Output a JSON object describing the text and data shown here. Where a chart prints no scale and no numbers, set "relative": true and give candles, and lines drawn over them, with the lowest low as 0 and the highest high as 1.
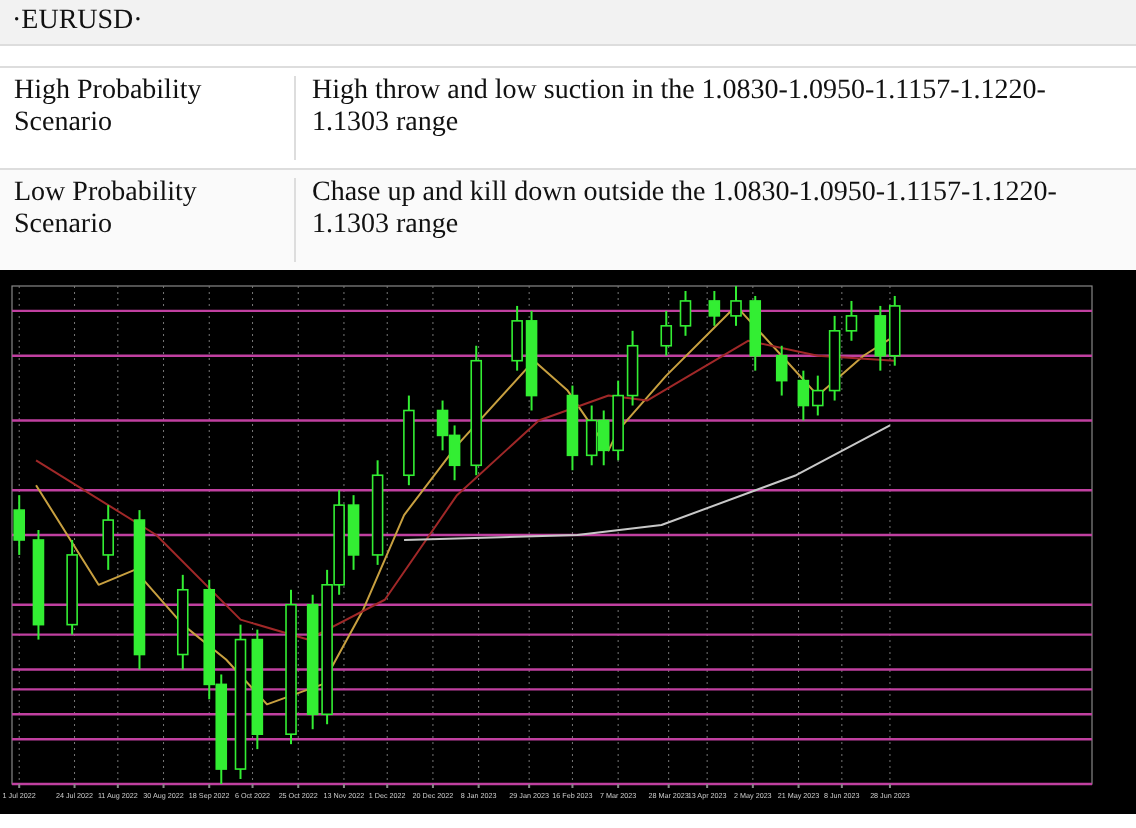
{
  "chart_data": [
    {
      "type": "other",
      "title": "·EURUSD·",
      "annotations": [
        "High Probability Scenario",
        "High throw and low suction in the 1.0830-1.0950-1.1157-1.1220-1.1303 range",
        "Low Probability Scenario",
        "Chase up and kill down outside the 1.0830-1.0950-1.1157-1.1220-1.1303 range"
      ]
    },
    {
      "type": "candlestick",
      "relative": true,
      "grid": "x",
      "xlim": [
        "2022-06-28",
        "2023-09-20"
      ],
      "xticks": [
        {
          "value": "2022-07-01",
          "label": "1 Jul 2022"
        },
        {
          "value": "2022-07-24",
          "label": "24 Jul 2022"
        },
        {
          "value": "2022-08-11",
          "label": "11 Aug 2022"
        },
        {
          "value": "2022-08-30",
          "label": "30 Aug 2022"
        },
        {
          "value": "2022-09-18",
          "label": "18 Sep 2022"
        },
        {
          "value": "2022-10-06",
          "label": "6 Oct 2022"
        },
        {
          "value": "2022-10-25",
          "label": "25 Oct 2022"
        },
        {
          "value": "2022-11-13",
          "label": "13 Nov 2022"
        },
        {
          "value": "2022-12-01",
          "label": "1 Dec 2022"
        },
        {
          "value": "2022-12-20",
          "label": "20 Dec 2022"
        },
        {
          "value": "2023-01-08",
          "label": "8 Jan 2023"
        },
        {
          "value": "2023-01-29",
          "label": "29 Jan 2023"
        },
        {
          "value": "2023-02-16",
          "label": "16 Feb 2023"
        },
        {
          "value": "2023-03-07",
          "label": "7 Mar 2023"
        },
        {
          "value": "2023-03-28",
          "label": "28 Mar 2023"
        },
        {
          "value": "2023-04-13",
          "label": "13 Apr 2023"
        },
        {
          "value": "2023-05-02",
          "label": "2 May 2023"
        },
        {
          "value": "2023-05-21",
          "label": "21 May 2023"
        },
        {
          "value": "2023-06-08",
          "label": "8 Jun 2023"
        },
        {
          "value": "2023-06-28",
          "label": "28 Jun 2023"
        }
      ],
      "x": [
        "2022-07-01",
        "2022-07-09",
        "2022-07-23",
        "2022-08-07",
        "2022-08-20",
        "2022-09-07",
        "2022-09-18",
        "2022-09-23",
        "2022-10-01",
        "2022-10-08",
        "2022-10-22",
        "2022-10-31",
        "2022-11-06",
        "2022-11-11",
        "2022-11-17",
        "2022-11-27",
        "2022-12-10",
        "2022-12-24",
        "2022-12-29",
        "2023-01-07",
        "2023-01-24",
        "2023-01-30",
        "2023-02-16",
        "2023-02-24",
        "2023-03-01",
        "2023-03-07",
        "2023-03-13",
        "2023-03-27",
        "2023-04-04",
        "2023-04-16",
        "2023-04-25",
        "2023-05-03",
        "2023-05-14",
        "2023-05-23",
        "2023-05-29",
        "2023-06-05",
        "2023-06-12",
        "2023-06-24",
        "2023-06-30"
      ],
      "ohlc": [
        [
          0.55,
          0.58,
          0.46,
          0.49
        ],
        [
          0.49,
          0.51,
          0.29,
          0.32
        ],
        [
          0.32,
          0.49,
          0.3,
          0.46
        ],
        [
          0.46,
          0.56,
          0.43,
          0.53
        ],
        [
          0.53,
          0.55,
          0.23,
          0.26
        ],
        [
          0.26,
          0.42,
          0.23,
          0.39
        ],
        [
          0.39,
          0.41,
          0.17,
          0.2
        ],
        [
          0.2,
          0.22,
          0,
          0.03
        ],
        [
          0.03,
          0.32,
          0.01,
          0.29
        ],
        [
          0.29,
          0.31,
          0.07,
          0.1
        ],
        [
          0.1,
          0.39,
          0.08,
          0.36
        ],
        [
          0.36,
          0.38,
          0.11,
          0.14
        ],
        [
          0.14,
          0.43,
          0.12,
          0.4
        ],
        [
          0.4,
          0.59,
          0.38,
          0.56
        ],
        [
          0.56,
          0.58,
          0.43,
          0.46
        ],
        [
          0.46,
          0.65,
          0.44,
          0.62
        ],
        [
          0.62,
          0.78,
          0.6,
          0.75
        ],
        [
          0.75,
          0.77,
          0.67,
          0.7
        ],
        [
          0.7,
          0.72,
          0.61,
          0.64
        ],
        [
          0.64,
          0.88,
          0.62,
          0.85
        ],
        [
          0.85,
          0.96,
          0.83,
          0.93
        ],
        [
          0.93,
          0.95,
          0.75,
          0.78
        ],
        [
          0.78,
          0.8,
          0.63,
          0.66
        ],
        [
          0.66,
          0.76,
          0.64,
          0.73
        ],
        [
          0.73,
          0.75,
          0.64,
          0.67
        ],
        [
          0.67,
          0.81,
          0.65,
          0.78
        ],
        [
          0.78,
          0.91,
          0.76,
          0.88
        ],
        [
          0.88,
          0.95,
          0.86,
          0.92
        ],
        [
          0.92,
          0.99,
          0.9,
          0.97
        ],
        [
          0.97,
          0.99,
          0.92,
          0.94
        ],
        [
          0.94,
          1,
          0.92,
          0.97
        ],
        [
          0.97,
          0.98,
          0.83,
          0.86
        ],
        [
          0.86,
          0.88,
          0.78,
          0.81
        ],
        [
          0.81,
          0.83,
          0.73,
          0.76
        ],
        [
          0.76,
          0.82,
          0.74,
          0.79
        ],
        [
          0.79,
          0.94,
          0.77,
          0.91
        ],
        [
          0.91,
          0.97,
          0.89,
          0.94
        ],
        [
          0.94,
          0.96,
          0.83,
          0.86
        ],
        [
          0.86,
          0.98,
          0.84,
          0.96
        ]
      ],
      "color": "#33ee33",
      "series": [
        {
          "type": "line",
          "color": "#c8a040",
          "x": [
            "2022-07-08",
            "2022-08-03",
            "2022-08-18",
            "2022-09-07",
            "2022-09-25",
            "2022-10-12",
            "2022-11-04",
            "2022-11-21",
            "2022-12-08",
            "2022-12-30",
            "2023-01-31",
            "2023-02-14",
            "2023-03-03",
            "2023-03-07",
            "2023-03-27",
            "2023-04-25",
            "2023-05-14",
            "2023-05-29",
            "2023-06-17",
            "2023-06-30"
          ],
          "values": [
            0.6,
            0.4,
            0.43,
            0.32,
            0.25,
            0.16,
            0.2,
            0.35,
            0.54,
            0.68,
            0.85,
            0.79,
            0.67,
            0.71,
            0.82,
            0.96,
            0.86,
            0.78,
            0.86,
            0.9
          ]
        },
        {
          "type": "line",
          "color": "#a02828",
          "x": [
            "2022-07-08",
            "2022-08-27",
            "2022-10-01",
            "2022-10-29",
            "2022-11-30",
            "2022-12-30",
            "2023-02-02",
            "2023-03-03",
            "2023-03-19",
            "2023-04-30",
            "2023-05-29",
            "2023-06-30"
          ],
          "values": [
            0.65,
            0.5,
            0.33,
            0.29,
            0.37,
            0.58,
            0.73,
            0.78,
            0.77,
            0.89,
            0.86,
            0.85
          ]
        },
        {
          "type": "line",
          "color": "#c8c8c8",
          "x": [
            "2022-12-08",
            "2023-02-18",
            "2023-03-25",
            "2023-05-20",
            "2023-06-28"
          ],
          "values": [
            0.49,
            0.5,
            0.52,
            0.62,
            0.72
          ]
        }
      ],
      "ref_lines": [
        {
          "axis": "y",
          "value": 0.95,
          "color": "#c040a0"
        },
        {
          "axis": "y",
          "value": 0.86,
          "color": "#c040a0"
        },
        {
          "axis": "y",
          "value": 0.73,
          "color": "#c040a0"
        },
        {
          "axis": "y",
          "value": 0.59,
          "color": "#c040a0"
        },
        {
          "axis": "y",
          "value": 0.5,
          "color": "#c040a0"
        },
        {
          "axis": "y",
          "value": 0.36,
          "color": "#c040a0"
        },
        {
          "axis": "y",
          "value": 0.3,
          "color": "#c040a0"
        },
        {
          "axis": "y",
          "value": 0.23,
          "color": "#c040a0"
        },
        {
          "axis": "y",
          "value": 0.19,
          "color": "#c040a0"
        },
        {
          "axis": "y",
          "value": 0.14,
          "color": "#c040a0"
        },
        {
          "axis": "y",
          "value": 0.09,
          "color": "#c040a0"
        },
        {
          "axis": "y",
          "value": 0,
          "color": "#c040a0"
        }
      ]
    }
  ]
}
